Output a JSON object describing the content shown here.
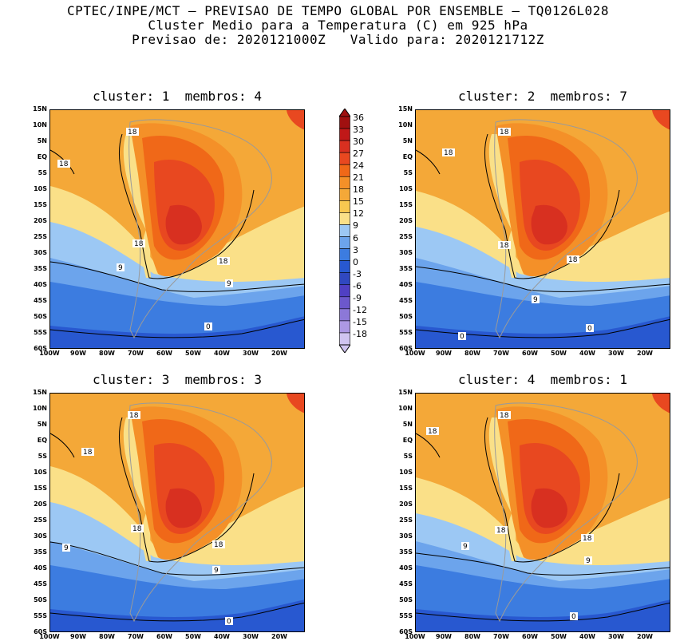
{
  "header": {
    "line1": "CPTEC/INPE/MCT — PREVISAO DE TEMPO GLOBAL POR ENSEMBLE — TQ0126L028",
    "line2": "Cluster Medio para a Temperatura (C) em 925 hPa",
    "line3": "Previsao de: 2020121000Z   Valido para: 2020121712Z"
  },
  "panels": [
    {
      "title": "cluster: 1  membros: 4",
      "contours": [
        "18",
        "18",
        "18",
        "18",
        "9",
        "9",
        "0"
      ]
    },
    {
      "title": "cluster: 2  membros: 7",
      "contours": [
        "18",
        "18",
        "18",
        "18",
        "9",
        "0",
        "0"
      ]
    },
    {
      "title": "cluster: 3  membros: 3",
      "contours": [
        "18",
        "18",
        "18",
        "18",
        "9",
        "9",
        "0"
      ]
    },
    {
      "title": "cluster: 4  membros: 1",
      "contours": [
        "18",
        "18",
        "18",
        "18",
        "9",
        "9",
        "0"
      ]
    }
  ],
  "axes": {
    "lat_ticks": [
      "15N",
      "10N",
      "5N",
      "EQ",
      "5S",
      "10S",
      "15S",
      "20S",
      "25S",
      "30S",
      "35S",
      "40S",
      "45S",
      "50S",
      "55S",
      "60S"
    ],
    "lon_ticks": [
      "100W",
      "90W",
      "80W",
      "70W",
      "60W",
      "50W",
      "40W",
      "30W",
      "20W"
    ]
  },
  "colorbar": {
    "labels": [
      "36",
      "33",
      "30",
      "27",
      "24",
      "21",
      "18",
      "15",
      "12",
      "9",
      "6",
      "3",
      "0",
      "-3",
      "-6",
      "-9",
      "-12",
      "-15",
      "-18"
    ],
    "colors": [
      "#a01010",
      "#c01818",
      "#d83020",
      "#e84820",
      "#f06818",
      "#f49028",
      "#f4a838",
      "#f8c850",
      "#fae088",
      "#9cc8f4",
      "#6ca4ec",
      "#3c7ce0",
      "#2858d0",
      "#3048c0",
      "#5040c4",
      "#6c58cc",
      "#8c78d8",
      "#ac98e4",
      "#d0c4f0"
    ]
  }
}
